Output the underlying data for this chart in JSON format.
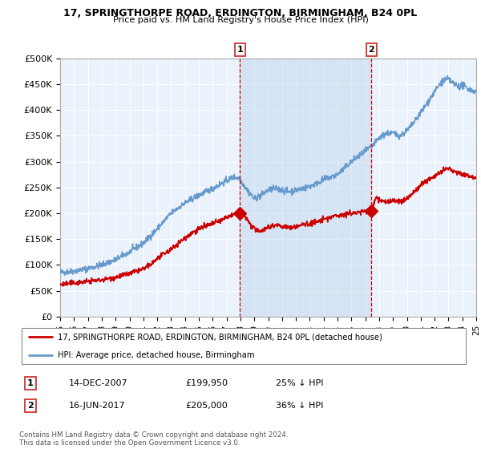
{
  "title1": "17, SPRINGTHORPE ROAD, ERDINGTON, BIRMINGHAM, B24 0PL",
  "title2": "Price paid vs. HM Land Registry's House Price Index (HPI)",
  "ylabel_ticks": [
    "£0",
    "£50K",
    "£100K",
    "£150K",
    "£200K",
    "£250K",
    "£300K",
    "£350K",
    "£400K",
    "£450K",
    "£500K"
  ],
  "ytick_values": [
    0,
    50000,
    100000,
    150000,
    200000,
    250000,
    300000,
    350000,
    400000,
    450000,
    500000
  ],
  "x_start_year": 1995,
  "x_end_year": 2025,
  "xtick_years": [
    1995,
    1996,
    1997,
    1998,
    1999,
    2000,
    2001,
    2002,
    2003,
    2004,
    2005,
    2006,
    2007,
    2008,
    2009,
    2010,
    2011,
    2012,
    2013,
    2014,
    2015,
    2016,
    2017,
    2018,
    2019,
    2020,
    2021,
    2022,
    2023,
    2024,
    2025
  ],
  "xtick_labels": [
    "95",
    "96",
    "97",
    "98",
    "99",
    "00",
    "01",
    "02",
    "03",
    "04",
    "05",
    "06",
    "07",
    "08",
    "09",
    "10",
    "11",
    "12",
    "13",
    "14",
    "15",
    "16",
    "17",
    "18",
    "19",
    "20",
    "21",
    "22",
    "23",
    "24",
    "25"
  ],
  "hpi_color": "#6699cc",
  "price_color": "#cc0000",
  "vline_color": "#cc0000",
  "shade_color": "#ddeeff",
  "marker1_label": "1",
  "marker1_year": 2007.96,
  "marker1_price": 199950,
  "marker1_date": "14-DEC-2007",
  "marker1_hpi_pct": "25% ↓ HPI",
  "marker2_label": "2",
  "marker2_year": 2017.45,
  "marker2_price": 205000,
  "marker2_date": "16-JUN-2017",
  "marker2_hpi_pct": "36% ↓ HPI",
  "legend_label1": "17, SPRINGTHORPE ROAD, ERDINGTON, BIRMINGHAM, B24 0PL (detached house)",
  "legend_label2": "HPI: Average price, detached house, Birmingham",
  "footer": "Contains HM Land Registry data © Crown copyright and database right 2024.\nThis data is licensed under the Open Government Licence v3.0.",
  "bg_color": "#ffffff",
  "plot_bg_color": "#eaf2fb",
  "grid_color": "#c8d8e8"
}
